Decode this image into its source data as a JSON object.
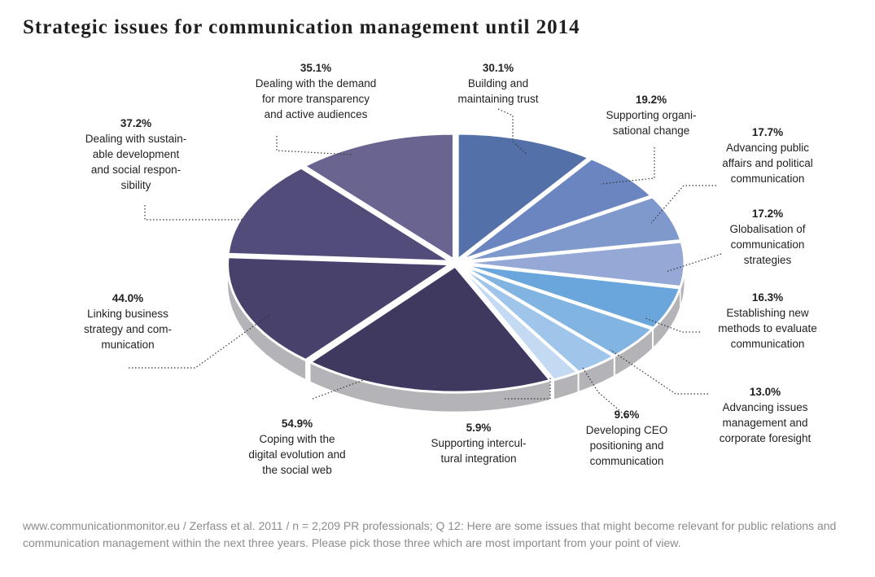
{
  "title": "Strategic issues for communication management until 2014",
  "source": "www.communicationmonitor.eu / Zerfass et al. 2011 / n = 2,209 PR professionals; Q 12: Here are some issues that might become relevant for public relations and communication management within the next three years. Please pick those three which are most important from your point of view.",
  "chart_data": {
    "type": "pie",
    "title": "Strategic issues for communication management until 2014",
    "style": "3d-exploded",
    "unit": "%",
    "slices": [
      {
        "label": "Building and maintaining trust",
        "display_lines": [
          "Building and",
          "maintaining trust"
        ],
        "value": 30.1,
        "value_label": "30.1%",
        "color": "#5470a8"
      },
      {
        "label": "Supporting organisational change",
        "display_lines": [
          "Supporting organi-",
          "sational change"
        ],
        "value": 19.2,
        "value_label": "19.2%",
        "color": "#6a85c0"
      },
      {
        "label": "Advancing public affairs and political communication",
        "display_lines": [
          "Advancing public",
          "affairs and political",
          "communication"
        ],
        "value": 17.7,
        "value_label": "17.7%",
        "color": "#8099cc"
      },
      {
        "label": "Globalisation of communication strategies",
        "display_lines": [
          "Globalisation of",
          "communication",
          "strategies"
        ],
        "value": 17.2,
        "value_label": "17.2%",
        "color": "#96a9d6"
      },
      {
        "label": "Establishing new methods to evaluate communication",
        "display_lines": [
          "Establishing new",
          "methods to evaluate",
          "communication"
        ],
        "value": 16.3,
        "value_label": "16.3%",
        "color": "#6aa6dc"
      },
      {
        "label": "Advancing issues management and corporate foresight",
        "display_lines": [
          "Advancing issues",
          "management and",
          "corporate foresight"
        ],
        "value": 13.0,
        "value_label": "13.0%",
        "color": "#82b4e2"
      },
      {
        "label": "Developing CEO positioning and communication",
        "display_lines": [
          "Developing CEO",
          "positioning and",
          "communication"
        ],
        "value": 9.6,
        "value_label": "9.6%",
        "color": "#9fc6ea"
      },
      {
        "label": "Supporting intercultural integration",
        "display_lines": [
          "Supporting intercul-",
          "tural integration"
        ],
        "value": 5.9,
        "value_label": "5.9%",
        "color": "#c3daf2"
      },
      {
        "label": "Coping with the digital evolution and the social web",
        "display_lines": [
          "Coping with the",
          "digital evolution and",
          "the social web"
        ],
        "value": 54.9,
        "value_label": "54.9%",
        "color": "#3f3960"
      },
      {
        "label": "Linking business strategy and communication",
        "display_lines": [
          "Linking business",
          "strategy and com-",
          "munication"
        ],
        "value": 44.0,
        "value_label": "44.0%",
        "color": "#47416c"
      },
      {
        "label": "Dealing with sustainable development and social responsibility",
        "display_lines": [
          "Dealing with sustain-",
          "able development",
          "and social respon-",
          "sibility"
        ],
        "value": 37.2,
        "value_label": "37.2%",
        "color": "#524c7a"
      },
      {
        "label": "Dealing with the demand for more transparency and active audiences",
        "display_lines": [
          "Dealing with the demand",
          "for more transparency",
          "and active audiences"
        ],
        "value": 35.1,
        "value_label": "35.1%",
        "color": "#6a6590"
      }
    ]
  }
}
